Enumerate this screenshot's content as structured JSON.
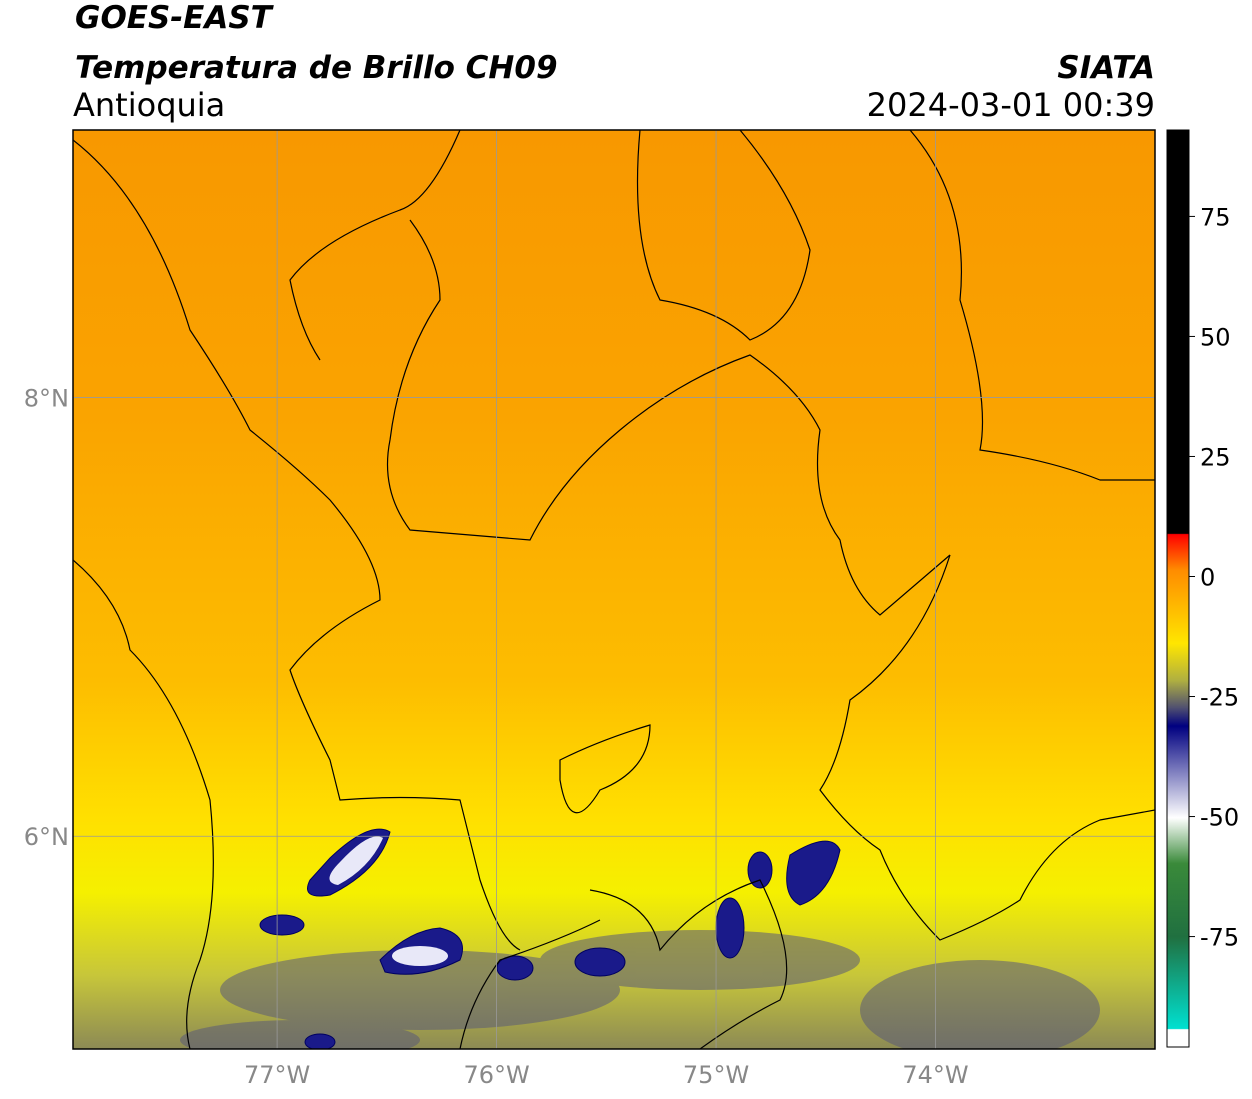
{
  "header": {
    "title": "GOES-EAST",
    "subtitle": "Temperatura de Brillo CH09",
    "region": "Antioquia",
    "source": "SIATA",
    "datetime": "2024-03-01 00:39"
  },
  "map": {
    "xlim": [
      -77.93,
      -73.0
    ],
    "ylim": [
      5.03,
      9.22
    ],
    "lat_ticks": [
      {
        "value": 8,
        "label": "8°N"
      },
      {
        "value": 6,
        "label": "6°N"
      }
    ],
    "lon_ticks": [
      {
        "value": -77,
        "label": "77°W"
      },
      {
        "value": -76,
        "label": "76°W"
      },
      {
        "value": -75,
        "label": "75°W"
      },
      {
        "value": -74,
        "label": "74°W"
      }
    ],
    "grid": true
  },
  "colorbar": {
    "lim": [
      -98,
      93
    ],
    "ticks": [
      75,
      50,
      25,
      0,
      -25,
      -50,
      -75
    ]
  }
}
